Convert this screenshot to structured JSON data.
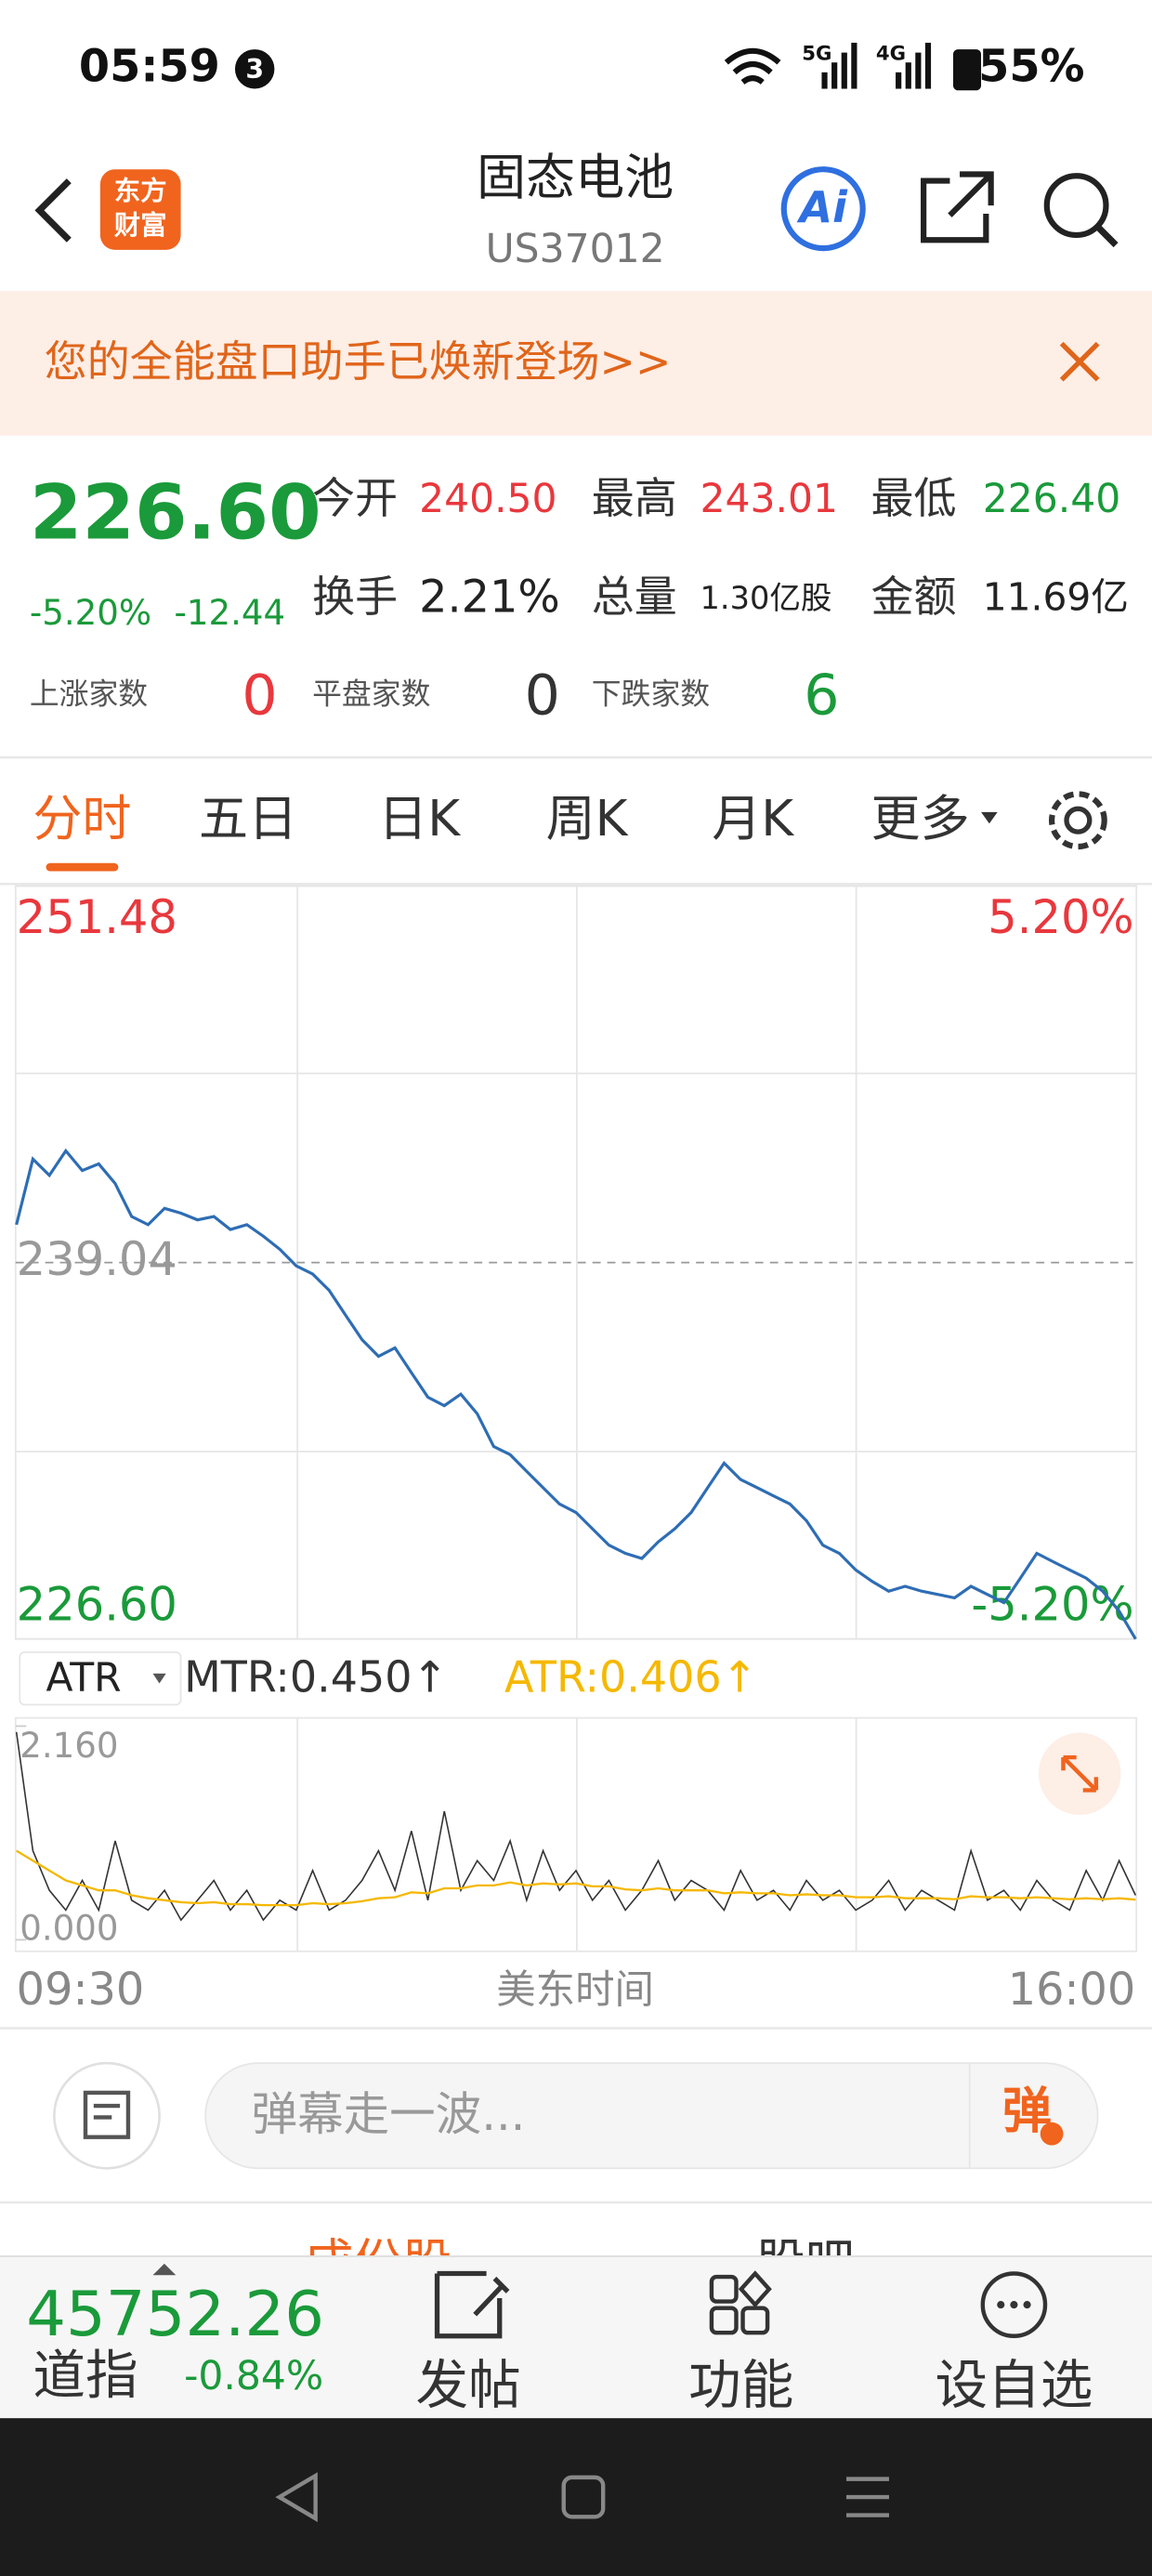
{
  "status_bar": {
    "time": "05:59",
    "badge": "3",
    "network_1": "5G",
    "network_2": "4G",
    "battery": "55%"
  },
  "header": {
    "logo_line_1": "东方",
    "logo_line_2": "财富",
    "title": "固态电池",
    "code": "US37012",
    "ai_button": "Ai"
  },
  "banner": {
    "text": "您的全能盘口助手已焕新登场>>"
  },
  "quote": {
    "price": "226.60",
    "change_pct": "-5.20%",
    "change": "-12.44",
    "fields": [
      {
        "label": "今开",
        "value": "240.50"
      },
      {
        "label": "最高",
        "value": "243.01"
      },
      {
        "label": "最低",
        "value": "226.40"
      },
      {
        "label": "换手",
        "value": "2.21%"
      },
      {
        "label": "总量",
        "value": "1.30亿股"
      },
      {
        "label": "金额",
        "value": "11.69亿"
      }
    ],
    "counts": [
      {
        "label": "上涨家数",
        "value": "0"
      },
      {
        "label": "平盘家数",
        "value": "0"
      },
      {
        "label": "下跌家数",
        "value": "6"
      }
    ]
  },
  "tabs": [
    "分时",
    "五日",
    "日K",
    "周K",
    "月K",
    "更多"
  ],
  "chart_data": [
    {
      "type": "line",
      "color": "#2e6db4",
      "values": [
        240.29,
        242.46,
        241.92,
        242.73,
        242.08,
        242.3,
        241.65,
        240.56,
        240.29,
        240.83,
        240.67,
        240.45,
        240.56,
        240.13,
        240.29,
        239.91,
        239.48,
        238.93,
        238.66,
        238.12,
        237.3,
        236.49,
        235.94,
        236.22,
        235.4,
        234.59,
        234.31,
        234.69,
        234.04,
        232.96,
        232.69,
        232.14,
        231.6,
        231.06,
        230.78,
        230.24,
        229.7,
        229.43,
        229.26,
        229.81,
        230.24,
        230.78,
        231.6,
        232.41,
        231.87,
        231.6,
        231.33,
        231.06,
        230.51,
        229.7,
        229.43,
        228.88,
        228.5,
        228.18,
        228.34,
        228.18,
        228.07,
        227.96,
        228.34,
        228.07,
        227.8,
        228.61,
        229.43,
        229.15,
        228.88,
        228.61,
        228.18,
        227.52,
        226.6
      ],
      "ylim": [
        226.6,
        251.48
      ],
      "yticks": [
        {
          "value": 226.6,
          "label": "226.60"
        },
        {
          "value": 239.04,
          "label": "239.04"
        },
        {
          "value": 251.48,
          "label": "251.48"
        }
      ],
      "y2lim": [
        -5.2,
        5.2
      ],
      "y2ticks": [
        {
          "value": -5.2,
          "label": "-5.20%"
        },
        {
          "value": 5.2,
          "label": "5.20%"
        }
      ]
    },
    {
      "type": "line",
      "indicator": "ATR",
      "series": [
        {
          "name": "MTR:0.450↑",
          "color": "#333333",
          "values": [
            2.1,
            0.9,
            0.5,
            0.3,
            0.6,
            0.3,
            1.0,
            0.4,
            0.3,
            0.5,
            0.2,
            0.4,
            0.6,
            0.3,
            0.5,
            0.2,
            0.4,
            0.3,
            0.7,
            0.3,
            0.4,
            0.6,
            0.9,
            0.5,
            1.1,
            0.4,
            1.3,
            0.5,
            0.8,
            0.6,
            1.0,
            0.4,
            0.9,
            0.5,
            0.7,
            0.4,
            0.6,
            0.3,
            0.5,
            0.8,
            0.4,
            0.6,
            0.5,
            0.3,
            0.7,
            0.4,
            0.5,
            0.3,
            0.6,
            0.4,
            0.5,
            0.3,
            0.4,
            0.6,
            0.3,
            0.5,
            0.4,
            0.3,
            0.9,
            0.4,
            0.5,
            0.3,
            0.6,
            0.4,
            0.3,
            0.7,
            0.4,
            0.8,
            0.45
          ]
        },
        {
          "name": "ATR:0.406↑",
          "color": "#f5b800",
          "values": [
            0.9,
            0.8,
            0.7,
            0.6,
            0.55,
            0.5,
            0.5,
            0.45,
            0.42,
            0.4,
            0.38,
            0.37,
            0.38,
            0.36,
            0.36,
            0.35,
            0.35,
            0.35,
            0.37,
            0.36,
            0.37,
            0.39,
            0.42,
            0.43,
            0.48,
            0.47,
            0.52,
            0.52,
            0.55,
            0.55,
            0.58,
            0.55,
            0.57,
            0.56,
            0.57,
            0.54,
            0.54,
            0.51,
            0.5,
            0.52,
            0.5,
            0.5,
            0.5,
            0.47,
            0.48,
            0.47,
            0.47,
            0.45,
            0.46,
            0.45,
            0.45,
            0.43,
            0.43,
            0.44,
            0.42,
            0.42,
            0.42,
            0.41,
            0.44,
            0.43,
            0.43,
            0.42,
            0.43,
            0.42,
            0.41,
            0.42,
            0.41,
            0.42,
            0.406
          ]
        }
      ],
      "ylim": [
        0,
        2.16
      ],
      "yticks": [
        {
          "value": 0,
          "label": "0.000"
        },
        {
          "value": 2.16,
          "label": "2.160"
        }
      ]
    }
  ],
  "time_axis": {
    "start": "09:30",
    "label": "美东时间",
    "end": "16:00"
  },
  "comment": {
    "placeholder": "弹幕走一波...",
    "button": "弹"
  },
  "sub_tabs": [
    "成份股",
    "股吧"
  ],
  "bottom_bar": {
    "index_value": "45752.26",
    "index_name": "道指",
    "index_change": "-0.84%",
    "buttons": [
      "发帖",
      "功能",
      "设自选"
    ]
  }
}
